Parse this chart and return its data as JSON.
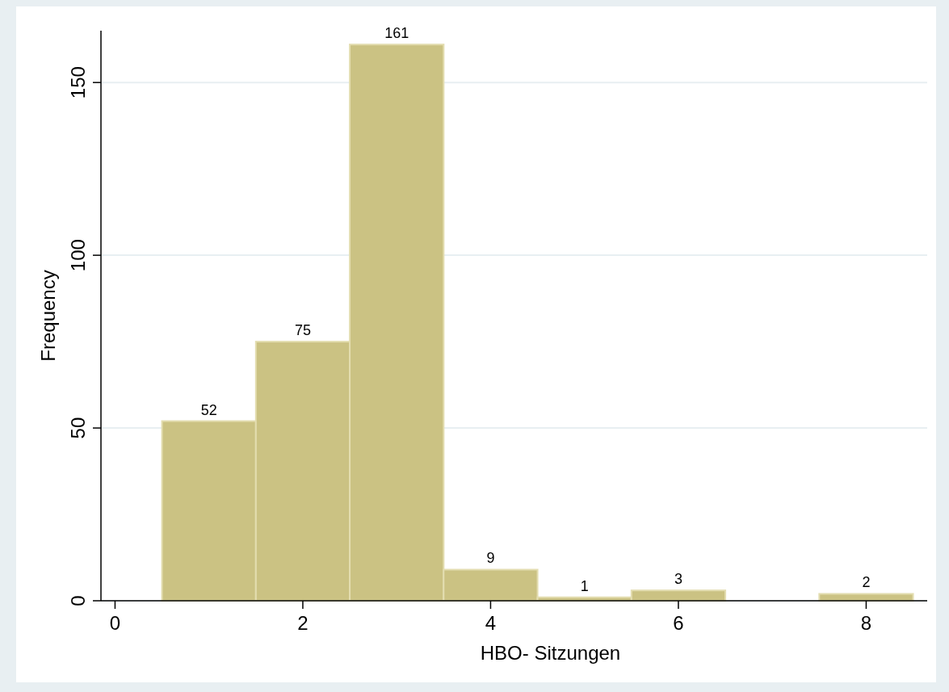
{
  "chart_data": {
    "type": "histogram",
    "xlabel": "HBO- Sitzungen",
    "ylabel": "Frequency",
    "bins": [
      0.5,
      1.5,
      2.5,
      3.5,
      4.5,
      5.5,
      6.5,
      7.5,
      8.5
    ],
    "values": [
      52,
      75,
      161,
      9,
      1,
      3,
      0,
      2
    ],
    "value_labels": [
      "52",
      "75",
      "161",
      "9",
      "1",
      "3",
      null,
      "2"
    ],
    "color": "#cbc283",
    "xlim": [
      -0.15,
      8.65
    ],
    "xticks": [
      0,
      2,
      4,
      6,
      8
    ],
    "ylim": [
      0,
      165
    ],
    "yticks": [
      0,
      50,
      100,
      150
    ],
    "grid": "y"
  }
}
